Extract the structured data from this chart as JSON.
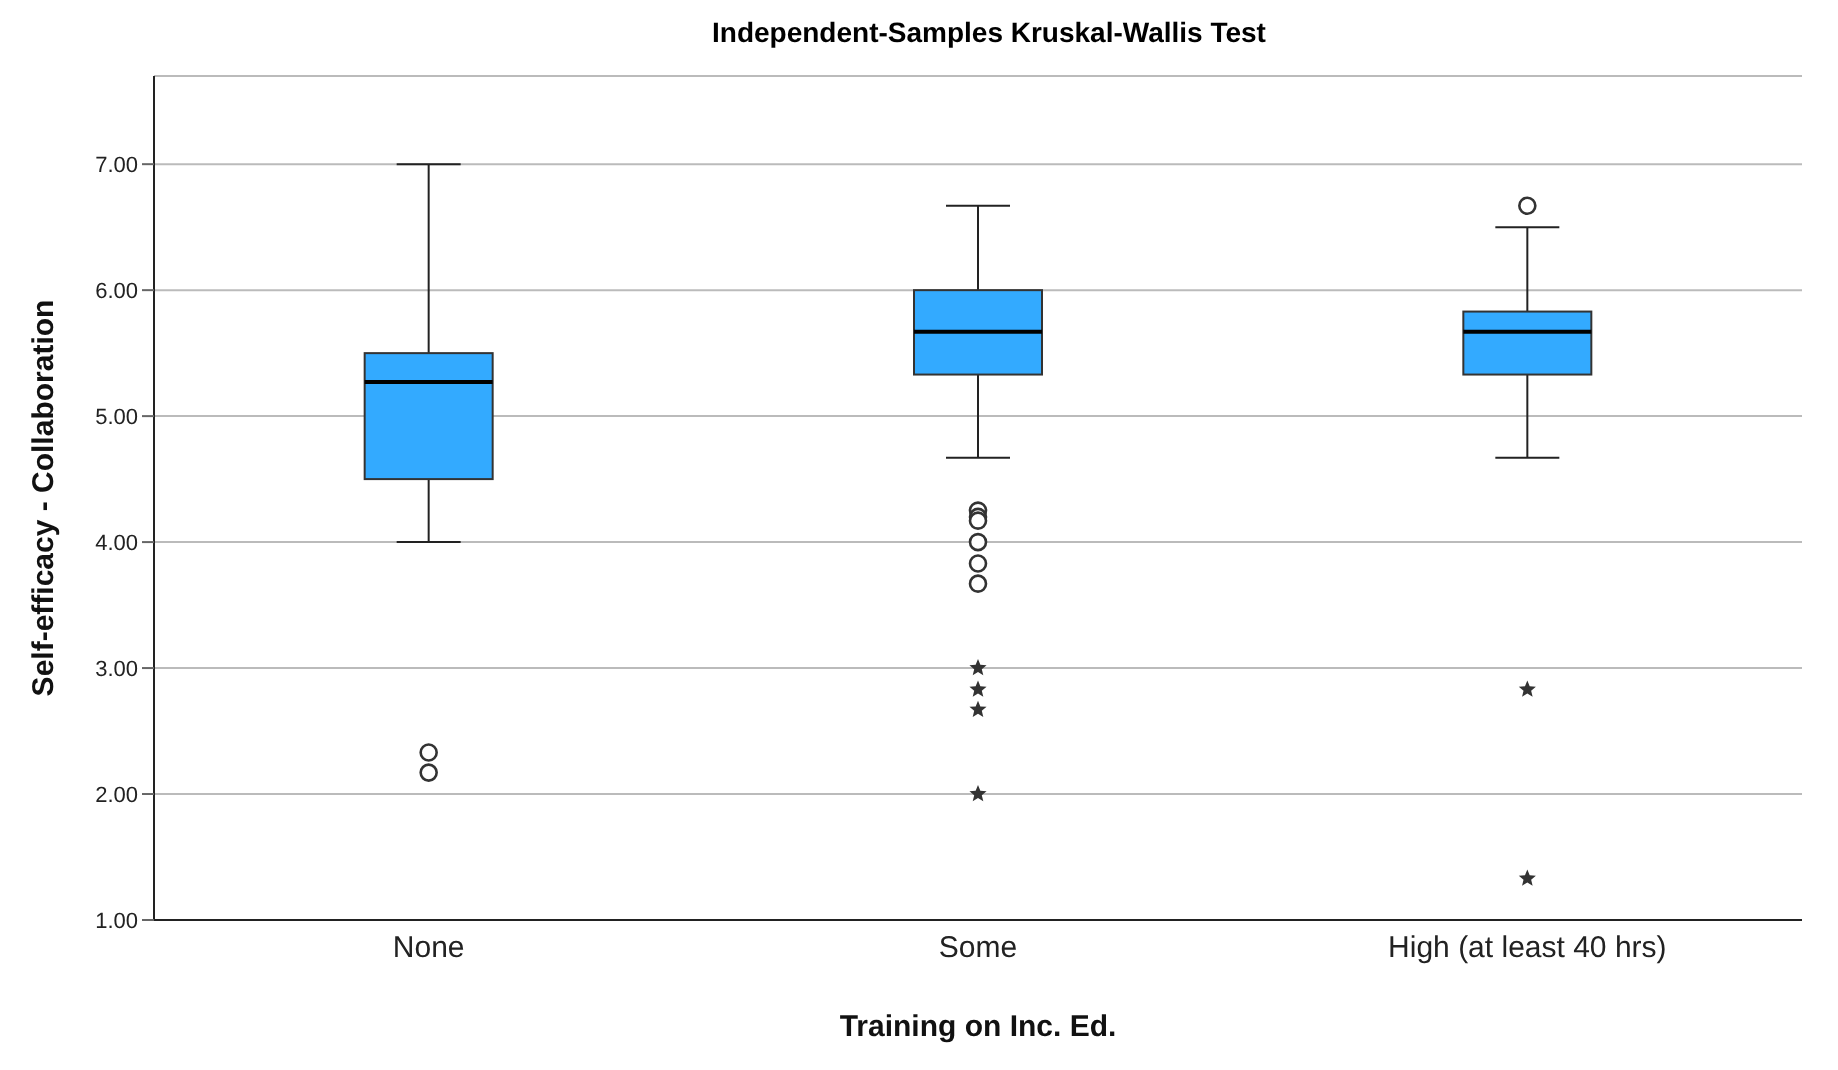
{
  "chart_data": {
    "type": "box",
    "title": "Independent-Samples Kruskal-Wallis Test",
    "xlabel": "Training on Inc. Ed.",
    "ylabel": "Self-efficacy - Collaboration",
    "categories": [
      "None",
      "Some",
      "High (at least 40 hrs)"
    ],
    "color": "#33aaff",
    "boxes": [
      {
        "low": 4.0,
        "q1": 4.5,
        "median": 5.27,
        "q3": 5.5,
        "high": 7.0,
        "outliers": [
          2.33,
          2.17
        ]
      },
      {
        "low": 4.67,
        "q1": 5.33,
        "median": 5.67,
        "q3": 6.0,
        "high": 6.67,
        "outliers": [
          4.25,
          4.2,
          4.17,
          4.0,
          3.83,
          3.67,
          3.0,
          2.83,
          2.67,
          2.0
        ]
      },
      {
        "low": 4.67,
        "q1": 5.33,
        "median": 5.67,
        "q3": 5.83,
        "high": 6.5,
        "outliers": [
          6.67,
          2.83,
          1.33
        ]
      }
    ],
    "ylim": [
      1,
      7.7
    ],
    "yticks": [
      {
        "value": 1,
        "label": "1.00"
      },
      {
        "value": 2,
        "label": "2.00"
      },
      {
        "value": 3,
        "label": "3.00"
      },
      {
        "value": 4,
        "label": "4.00"
      },
      {
        "value": 5,
        "label": "5.00"
      },
      {
        "value": 6,
        "label": "6.00"
      },
      {
        "value": 7,
        "label": "7.00"
      }
    ],
    "grid": "y"
  }
}
